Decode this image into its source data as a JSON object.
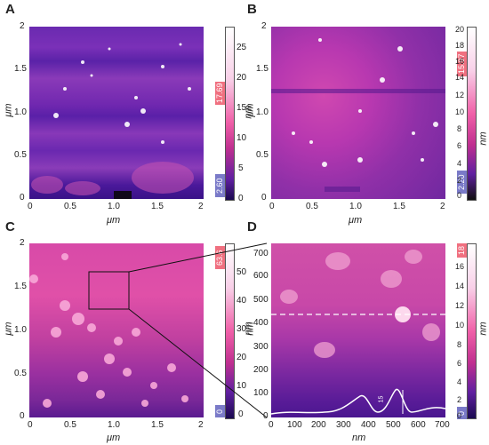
{
  "panels": {
    "A": {
      "label": "A",
      "x_ticks": [
        "0",
        "0.5",
        "1.0",
        "1.5",
        "2"
      ],
      "y_ticks": [
        "2",
        "1.5",
        "1.0",
        "0.5",
        "0"
      ],
      "x_axis_label": "μm",
      "y_axis_label": "μm",
      "colorbar_ticks": [
        "25",
        "20",
        "15",
        "10",
        "5",
        "0"
      ],
      "colorbar_unit": "nm",
      "colorbar_top_badge": "17.69",
      "colorbar_bottom_badge": "2.60"
    },
    "B": {
      "label": "B",
      "x_ticks": [
        "0",
        "0.5",
        "1.0",
        "1.5",
        "2"
      ],
      "y_ticks": [
        "2",
        "1.5",
        "1.0",
        "0.5",
        "0"
      ],
      "x_axis_label": "μm",
      "y_axis_label": "μm",
      "colorbar_ticks": [
        "20",
        "18",
        "16",
        "14",
        "12",
        "10",
        "8",
        "6",
        "4",
        "2",
        "0"
      ],
      "colorbar_unit": "nm",
      "colorbar_top_badge": "15.97",
      "colorbar_bottom_badge": "2.20"
    },
    "C": {
      "label": "C",
      "x_ticks": [
        "0",
        "0.5",
        "1.0",
        "1.5",
        "2"
      ],
      "y_ticks": [
        "2",
        "1.5",
        "1.0",
        "0.5",
        "0"
      ],
      "x_axis_label": "μm",
      "y_axis_label": "μm",
      "colorbar_ticks": [
        "50",
        "40",
        "30",
        "20",
        "10",
        "0"
      ],
      "colorbar_unit": "nm",
      "colorbar_top_badge": "63.6",
      "colorbar_bottom_badge": "0"
    },
    "D": {
      "label": "D",
      "x_ticks": [
        "0",
        "100",
        "200",
        "300",
        "400",
        "500",
        "600",
        "700"
      ],
      "y_ticks": [
        "700",
        "600",
        "500",
        "400",
        "300",
        "200",
        "100",
        "0"
      ],
      "x_axis_label": "nm",
      "y_axis_label": "nm",
      "colorbar_ticks": [
        "16",
        "14",
        "12",
        "10",
        "8",
        "6",
        "4",
        "2",
        "0"
      ],
      "colorbar_unit": "nm",
      "colorbar_top_badge": "18",
      "colorbar_bottom_badge": "0",
      "profile_label": "15"
    }
  }
}
